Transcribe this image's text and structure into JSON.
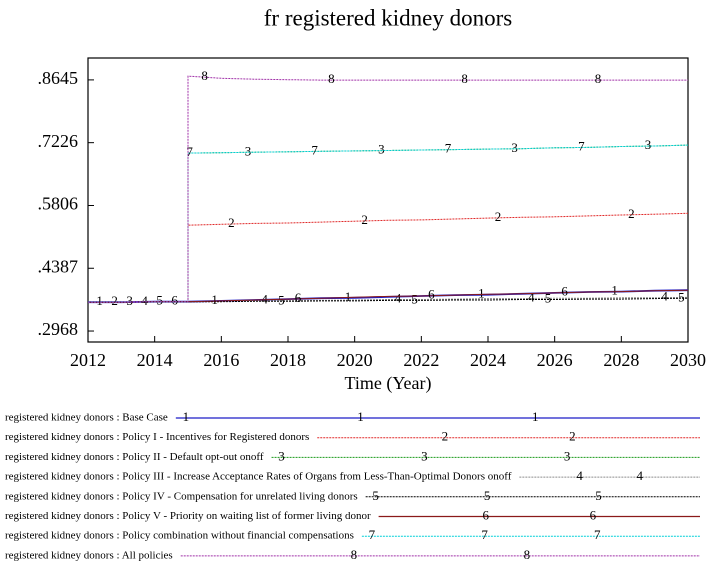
{
  "chart_data": {
    "type": "line",
    "title": "fr registered kidney donors",
    "x_label": "Time (Year)",
    "x": [
      2012,
      2013,
      2014,
      2015,
      2015,
      2016,
      2017,
      2018,
      2019,
      2020,
      2021,
      2022,
      2023,
      2024,
      2025,
      2026,
      2027,
      2028,
      2029,
      2030
    ],
    "xlim": [
      2012,
      2030
    ],
    "xticks": [
      2012,
      2014,
      2016,
      2018,
      2020,
      2022,
      2024,
      2026,
      2028,
      2030
    ],
    "ylim": [
      0.272,
      0.914
    ],
    "yticks": [
      {
        "value": 0.2968,
        "label": ".2968"
      },
      {
        "value": 0.4387,
        "label": ".4387"
      },
      {
        "value": 0.5806,
        "label": ".5806"
      },
      {
        "value": 0.7226,
        "label": ".7226"
      },
      {
        "value": 0.8645,
        "label": ".8645"
      }
    ],
    "series": [
      {
        "name": "registered kidney donors : Base Case",
        "marker": "1",
        "color": "#1c1cc8",
        "values": [
          0.362,
          0.362,
          0.363,
          0.363,
          0.363,
          0.365,
          0.367,
          0.369,
          0.371,
          0.372,
          0.374,
          0.376,
          0.378,
          0.379,
          0.381,
          0.383,
          0.385,
          0.386,
          0.388,
          0.389
        ]
      },
      {
        "name": "registered kidney donors : Policy I - Incentives for Registered donors",
        "marker": "2",
        "color": "#e02828",
        "values": [
          0.362,
          0.362,
          0.363,
          0.363,
          0.536,
          0.538,
          0.54,
          0.541,
          0.543,
          0.545,
          0.547,
          0.548,
          0.55,
          0.552,
          0.554,
          0.555,
          0.557,
          0.559,
          0.561,
          0.563
        ]
      },
      {
        "name": "registered kidney donors : Policy II - Default opt-out onoff",
        "marker": "3",
        "color": "#1a9a1a",
        "values": [
          0.362,
          0.362,
          0.363,
          0.363,
          0.699,
          0.7,
          0.701,
          0.702,
          0.703,
          0.704,
          0.705,
          0.706,
          0.707,
          0.708,
          0.709,
          0.711,
          0.712,
          0.714,
          0.715,
          0.717
        ]
      },
      {
        "name": "registered kidney donors : Policy III - Increase Acceptance Rates of Organs from Less-Than-Optimal Donors onoff",
        "marker": "4",
        "color": "#8c8c8c",
        "values": [
          0.362,
          0.362,
          0.363,
          0.363,
          0.363,
          0.364,
          0.365,
          0.366,
          0.366,
          0.367,
          0.368,
          0.368,
          0.369,
          0.37,
          0.37,
          0.371,
          0.371,
          0.372,
          0.372,
          0.373
        ]
      },
      {
        "name": "registered kidney donors : Policy IV - Compensation for unrelated living donors",
        "marker": "5",
        "color": "#000000",
        "values": [
          0.362,
          0.362,
          0.363,
          0.363,
          0.363,
          0.363,
          0.364,
          0.364,
          0.365,
          0.365,
          0.366,
          0.366,
          0.367,
          0.367,
          0.368,
          0.368,
          0.369,
          0.369,
          0.37,
          0.371
        ]
      },
      {
        "name": "registered kidney donors : Policy V - Priority on waiting list of former living donor",
        "marker": "6",
        "color": "#8b1a1a",
        "values": [
          0.362,
          0.362,
          0.363,
          0.363,
          0.363,
          0.365,
          0.367,
          0.369,
          0.371,
          0.373,
          0.375,
          0.376,
          0.378,
          0.38,
          0.381,
          0.383,
          0.385,
          0.386,
          0.388,
          0.389
        ]
      },
      {
        "name": "registered kidney donors : Policy combination without financial compensations",
        "marker": "7",
        "color": "#00d0d8",
        "values": [
          0.362,
          0.362,
          0.363,
          0.363,
          0.699,
          0.7,
          0.701,
          0.702,
          0.703,
          0.704,
          0.705,
          0.706,
          0.707,
          0.708,
          0.709,
          0.711,
          0.712,
          0.714,
          0.715,
          0.717
        ]
      },
      {
        "name": "registered kidney donors : All policies",
        "marker": "8",
        "color": "#a030a8",
        "values": [
          0.362,
          0.362,
          0.363,
          0.363,
          0.873,
          0.868,
          0.866,
          0.865,
          0.864,
          0.864,
          0.864,
          0.864,
          0.864,
          0.864,
          0.864,
          0.864,
          0.864,
          0.864,
          0.864,
          0.864
        ]
      }
    ]
  }
}
